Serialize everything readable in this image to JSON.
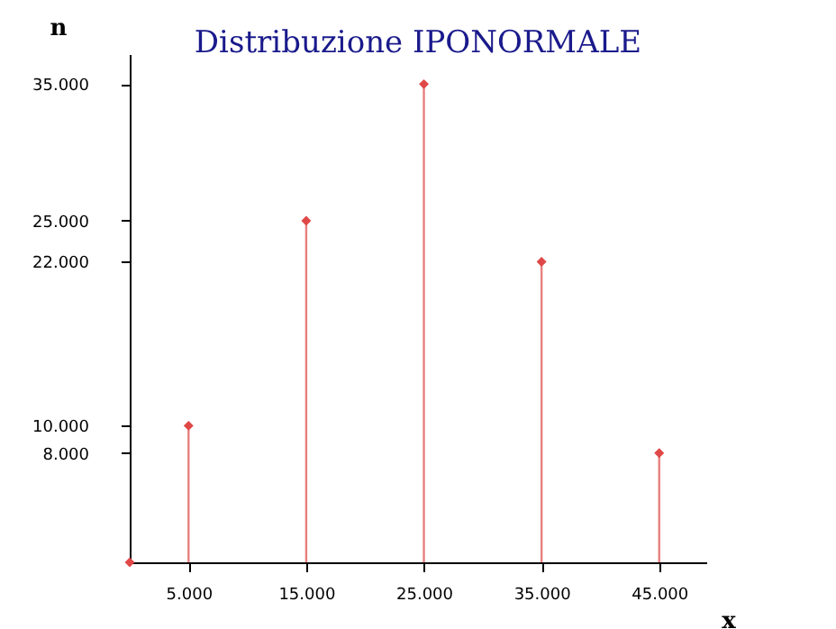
{
  "chart_data": {
    "type": "lollipop",
    "title": "Distribuzione  IPONORMALE",
    "xlabel": "x",
    "ylabel": "n",
    "x": [
      0,
      5,
      15,
      25,
      35,
      45
    ],
    "series": [
      {
        "color": "#e04848",
        "values": [
          0,
          10,
          25,
          35,
          22,
          8
        ]
      }
    ],
    "xlim": [
      0,
      49
    ],
    "ylim": [
      0,
      37.2
    ],
    "xticks": [
      {
        "value": 5,
        "label": "5.000"
      },
      {
        "value": 15,
        "label": "15.000"
      },
      {
        "value": 25,
        "label": "25.000"
      },
      {
        "value": 35,
        "label": "35.000"
      },
      {
        "value": 45,
        "label": "45.000"
      }
    ],
    "yticks": [
      {
        "value": 8,
        "label": "8.000"
      },
      {
        "value": 10,
        "label": "10.000"
      },
      {
        "value": 22,
        "label": "22.000"
      },
      {
        "value": 25,
        "label": "25.000"
      },
      {
        "value": 35,
        "label": "35.000"
      }
    ],
    "marker": "diamond",
    "grid": false,
    "legend": false
  }
}
